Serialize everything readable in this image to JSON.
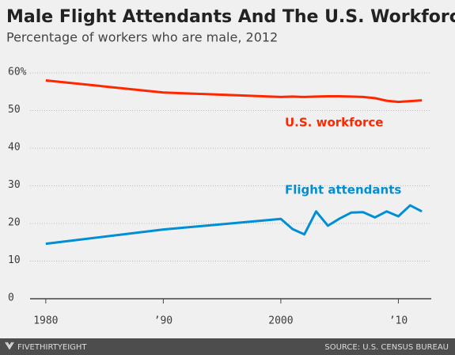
{
  "chart_data": {
    "type": "line",
    "title": "Male Flight Attendants And The U.S. Workforce",
    "subtitle": "Percentage of workers who are male, 2012",
    "x": [
      1980,
      1990,
      2000,
      2001,
      2002,
      2003,
      2004,
      2005,
      2006,
      2007,
      2008,
      2009,
      2010,
      2011,
      2012
    ],
    "series": [
      {
        "name": "U.S. workforce",
        "color": "#ff2700",
        "values": [
          58,
          54.8,
          53.6,
          53.7,
          53.6,
          53.7,
          53.8,
          53.8,
          53.7,
          53.6,
          53.3,
          52.6,
          52.3,
          52.5,
          52.7
        ]
      },
      {
        "name": "Flight attendants",
        "color": "#008fd5",
        "values": [
          14.6,
          18.4,
          21.2,
          18.5,
          17.1,
          23.2,
          19.4,
          21.3,
          22.9,
          23.0,
          21.6,
          23.2,
          21.9,
          24.8,
          23.2
        ]
      }
    ],
    "xlim": [
      1979,
      2013
    ],
    "xticks": [
      1980,
      {
        "value": 1990,
        "label": "’90"
      },
      2000,
      {
        "value": 2010,
        "label": "’10"
      }
    ],
    "ylim": [
      0,
      60
    ],
    "yticks": [
      0,
      10,
      20,
      30,
      40,
      {
        "value": 50,
        "label": "50"
      },
      {
        "value": 60,
        "label": "60%"
      }
    ],
    "grid": true,
    "brand": "FIVETHIRTYEIGHT",
    "source": "SOURCE: U.S. CENSUS BUREAU"
  }
}
